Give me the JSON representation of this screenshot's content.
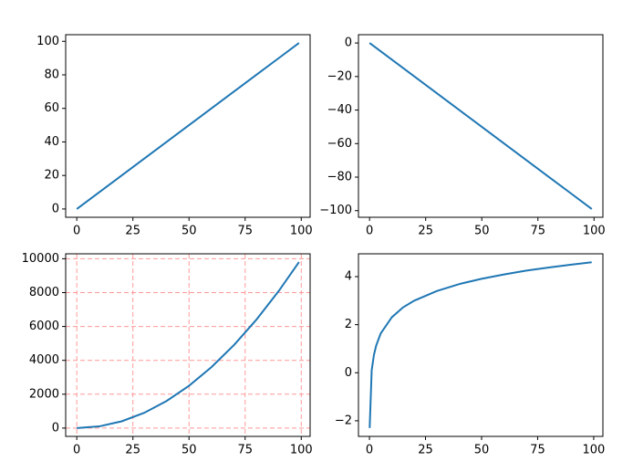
{
  "chart_data": [
    {
      "type": "line",
      "x": [
        0,
        10,
        20,
        30,
        40,
        50,
        60,
        70,
        80,
        90,
        99
      ],
      "series": [
        {
          "color": "#1f77b4",
          "values": [
            0,
            10,
            20,
            30,
            40,
            50,
            60,
            70,
            80,
            90,
            99
          ]
        }
      ],
      "xlim": [
        -4.95,
        103.95
      ],
      "ylim": [
        -4.95,
        103.95
      ],
      "xticks": [
        0,
        25,
        50,
        75,
        100
      ],
      "yticks": [
        0,
        20,
        40,
        60,
        80,
        100
      ],
      "grid": false
    },
    {
      "type": "line",
      "x": [
        0,
        10,
        20,
        30,
        40,
        50,
        60,
        70,
        80,
        90,
        99
      ],
      "series": [
        {
          "color": "#1f77b4",
          "values": [
            0,
            -10,
            -20,
            -30,
            -40,
            -50,
            -60,
            -70,
            -80,
            -90,
            -99
          ]
        }
      ],
      "xlim": [
        -4.95,
        103.95
      ],
      "ylim": [
        -103.95,
        4.95
      ],
      "xticks": [
        0,
        25,
        50,
        75,
        100
      ],
      "yticks": [
        {
          "value": 0,
          "label": "0"
        },
        {
          "value": -20,
          "label": "−20"
        },
        {
          "value": -40,
          "label": "−40"
        },
        {
          "value": -60,
          "label": "−60"
        },
        {
          "value": -80,
          "label": "−80"
        },
        {
          "value": -100,
          "label": "−100"
        }
      ],
      "grid": false
    },
    {
      "type": "line",
      "x": [
        0,
        10,
        20,
        30,
        40,
        50,
        60,
        70,
        80,
        90,
        99
      ],
      "series": [
        {
          "color": "#1f77b4",
          "values": [
            0,
            100,
            400,
            900,
            1600,
            2500,
            3600,
            4900,
            6400,
            8100,
            9801
          ]
        }
      ],
      "xlim": [
        -4.95,
        103.95
      ],
      "ylim": [
        -490,
        10291
      ],
      "xticks": [
        0,
        25,
        50,
        75,
        100
      ],
      "yticks": [
        0,
        2000,
        4000,
        6000,
        8000,
        10000
      ],
      "grid": true,
      "grid_color": "#ff9999"
    },
    {
      "type": "line",
      "x": [
        0.1,
        1,
        2,
        3,
        5,
        10,
        15,
        20,
        30,
        40,
        50,
        60,
        70,
        80,
        90,
        99.1
      ],
      "series": [
        {
          "color": "#1f77b4",
          "values": [
            -2.3,
            0.1,
            0.74,
            1.13,
            1.63,
            2.31,
            2.72,
            3.0,
            3.4,
            3.69,
            3.91,
            4.09,
            4.25,
            4.38,
            4.5,
            4.6
          ]
        }
      ],
      "xlim": [
        -4.9,
        104.1
      ],
      "ylim": [
        -2.65,
        4.95
      ],
      "xticks": [
        0,
        25,
        50,
        75,
        100
      ],
      "yticks": [
        {
          "value": -2,
          "label": "−2"
        },
        0,
        2,
        4
      ],
      "grid": false
    }
  ]
}
